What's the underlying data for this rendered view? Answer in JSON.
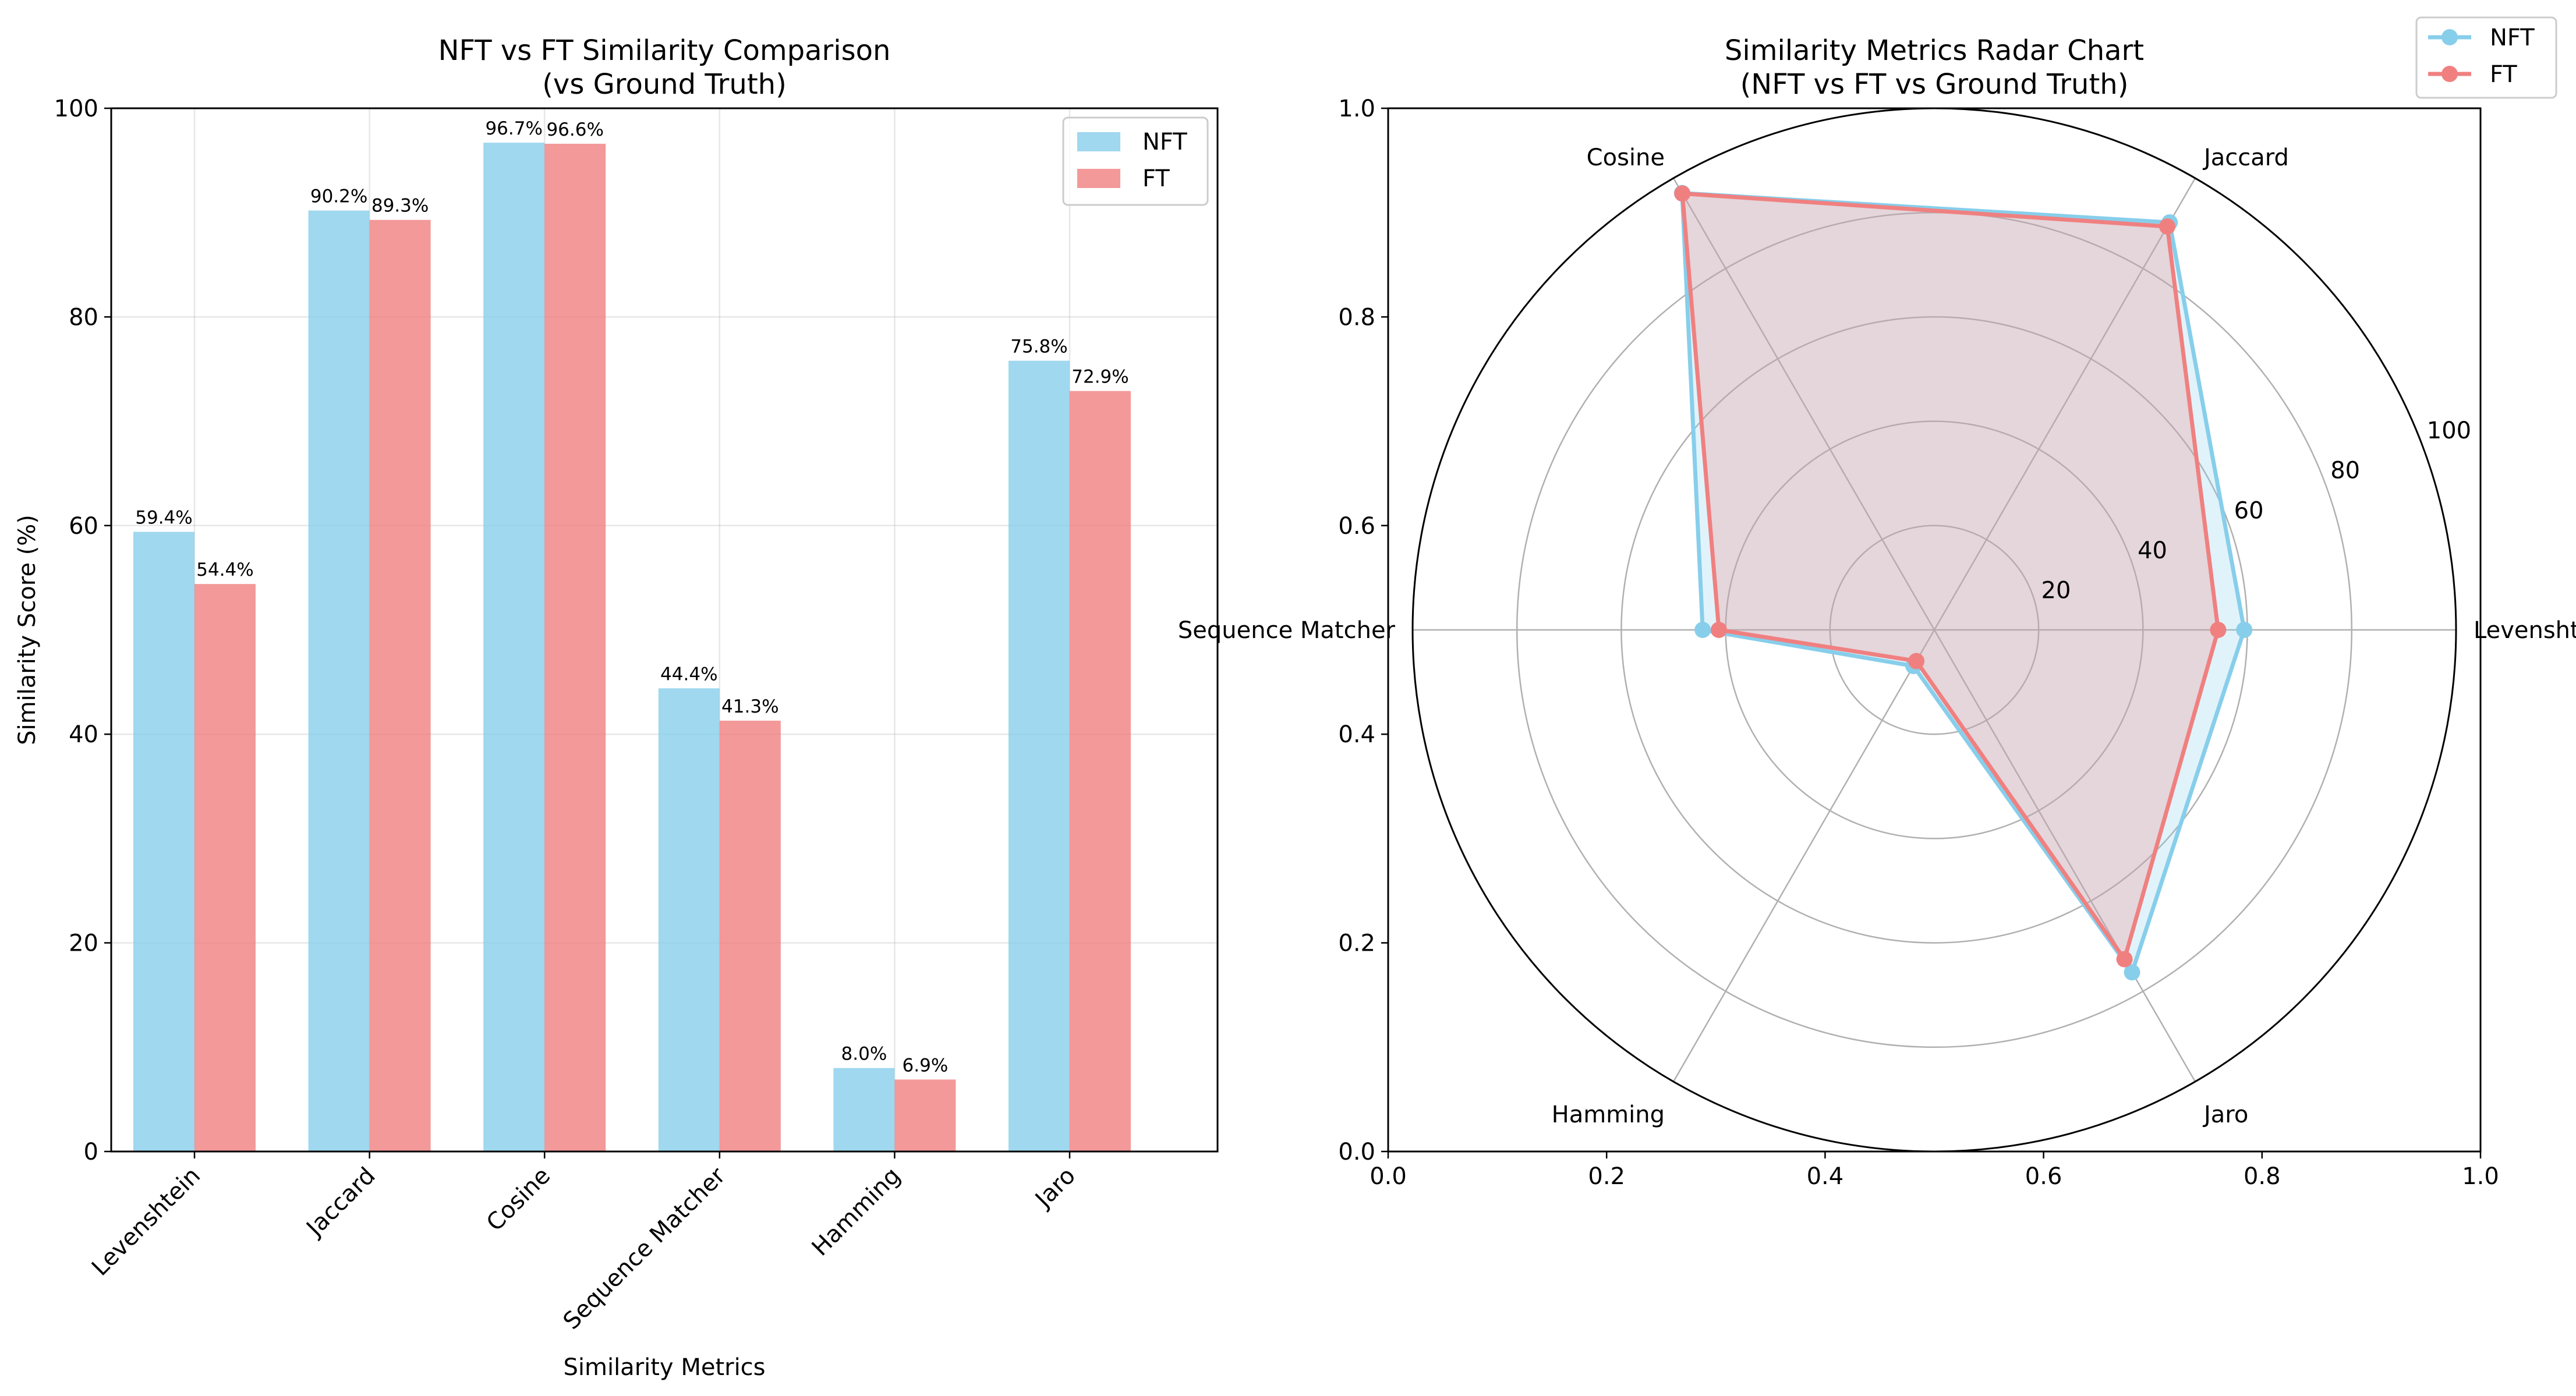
{
  "chart_data": [
    {
      "type": "bar",
      "title": "NFT vs FT Similarity Comparison",
      "subtitle": "(vs Ground Truth)",
      "xlabel": "Similarity Metrics",
      "ylabel": "Similarity Score (%)",
      "ylim": [
        0,
        100
      ],
      "yticks": [
        0,
        20,
        40,
        60,
        80,
        100
      ],
      "grid": true,
      "legend_position": "top-right",
      "categories": [
        "Levenshtein",
        "Jaccard",
        "Cosine",
        "Sequence Matcher",
        "Hamming",
        "Jaro"
      ],
      "series": [
        {
          "name": "NFT",
          "color": "#87ceeb",
          "values": [
            59.4,
            90.2,
            96.7,
            44.4,
            8.0,
            75.8
          ],
          "labels": [
            "59.4%",
            "90.2%",
            "96.7%",
            "44.4%",
            "8.0%",
            "75.8%"
          ]
        },
        {
          "name": "FT",
          "color": "#f08080",
          "values": [
            54.4,
            89.3,
            96.6,
            41.3,
            6.9,
            72.9
          ],
          "labels": [
            "54.4%",
            "89.3%",
            "96.6%",
            "41.3%",
            "6.9%",
            "72.9%"
          ]
        }
      ]
    },
    {
      "type": "radar",
      "title": "Similarity Metrics Radar Chart",
      "subtitle": "(NFT vs FT vs Ground Truth)",
      "categories": [
        "Levenshtein",
        "Jaccard",
        "Cosine",
        "Sequence Matcher",
        "Hamming",
        "Jaro"
      ],
      "rlim": [
        0,
        100
      ],
      "rticks": [
        20,
        40,
        60,
        80,
        100
      ],
      "frame_ticks": [
        "0.0",
        "0.2",
        "0.4",
        "0.6",
        "0.8",
        "1.0"
      ],
      "grid": true,
      "legend_position": "top-right outside",
      "series": [
        {
          "name": "NFT",
          "color": "#87ceeb",
          "values": [
            59.4,
            90.2,
            96.7,
            44.4,
            8.0,
            75.8
          ]
        },
        {
          "name": "FT",
          "color": "#f08080",
          "values": [
            54.4,
            89.3,
            96.6,
            41.3,
            6.9,
            72.9
          ]
        }
      ]
    }
  ]
}
